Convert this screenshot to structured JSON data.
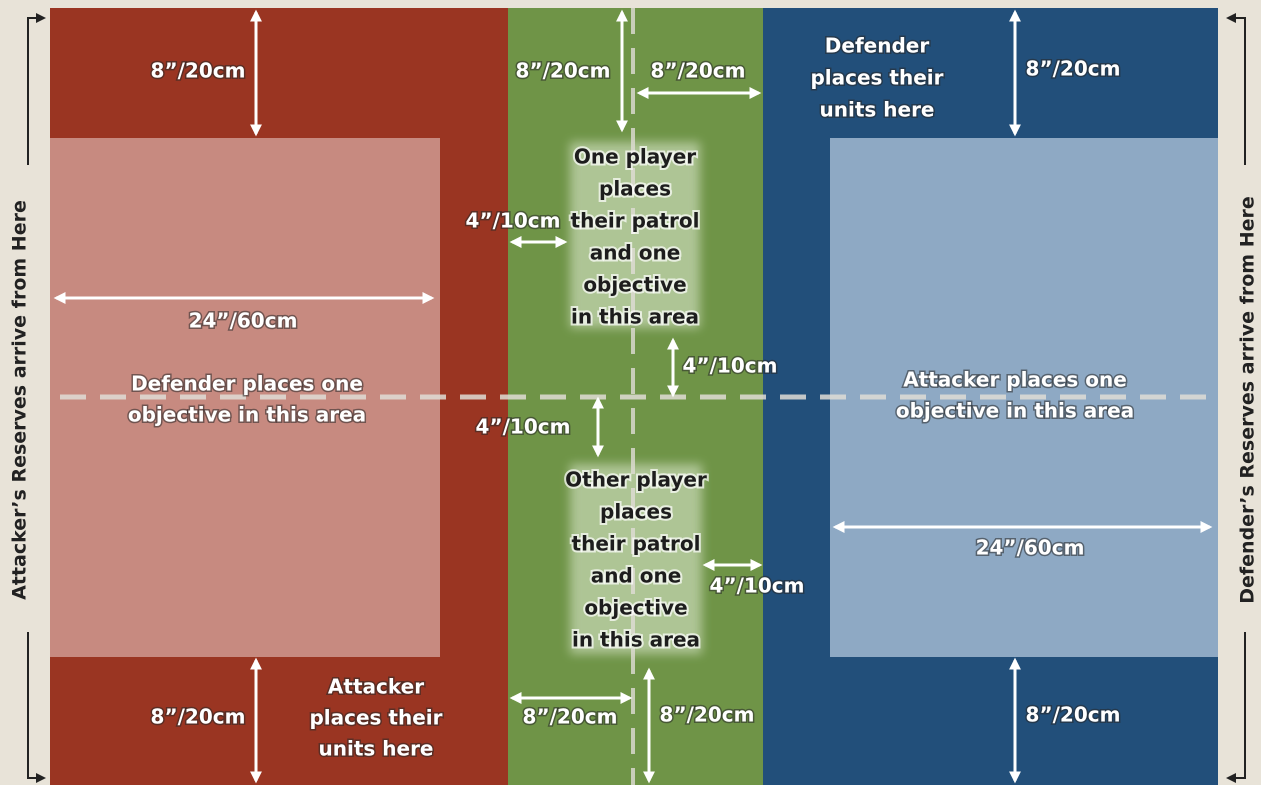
{
  "side_labels": {
    "left": "Attacker’s Reserves arrive from Here",
    "right": "Defender’s Reserves arrive from Here"
  },
  "areas": {
    "defender_units": [
      "Defender",
      "places their",
      "units here"
    ],
    "attacker_units": [
      "Attacker",
      "places their",
      "units here"
    ],
    "patrol_top": [
      "One player",
      "places",
      "their patrol",
      "and one",
      "objective",
      "in this area"
    ],
    "patrol_bottom": [
      "Other player",
      "places",
      "their patrol",
      "and one",
      "objective",
      "in this area"
    ],
    "defender_objective": [
      "Defender places one",
      "objective in this area"
    ],
    "attacker_objective": [
      "Attacker places one",
      "objective in this area"
    ]
  },
  "measurements": [
    "8”/20cm",
    "8”/20cm",
    "8”/20cm",
    "8”/20cm",
    "4”/10cm",
    "24”/60cm",
    "4”/10cm",
    "4”/10cm",
    "24”/60cm",
    "4”/10cm",
    "8”/20cm",
    "8”/20cm",
    "8”/20cm",
    "8”/20cm"
  ]
}
